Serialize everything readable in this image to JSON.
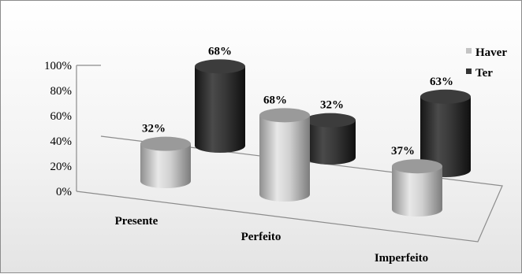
{
  "chart_data": {
    "type": "bar",
    "style": "3d-cylinder",
    "categories": [
      "Presente",
      "Perfeito",
      "Imperfeito"
    ],
    "series": [
      {
        "name": "Haver",
        "values": [
          32,
          68,
          37
        ],
        "labels": [
          "32%",
          "68%",
          "37%"
        ],
        "color": "#c4c4c4"
      },
      {
        "name": "Ter",
        "values": [
          68,
          32,
          63
        ],
        "labels": [
          "68%",
          "32%",
          "63%"
        ],
        "color": "#333333"
      }
    ],
    "yticks": [
      "0%",
      "20%",
      "40%",
      "60%",
      "80%",
      "100%"
    ],
    "ylim": [
      0,
      100
    ],
    "legend": "top-right",
    "grid": false
  }
}
